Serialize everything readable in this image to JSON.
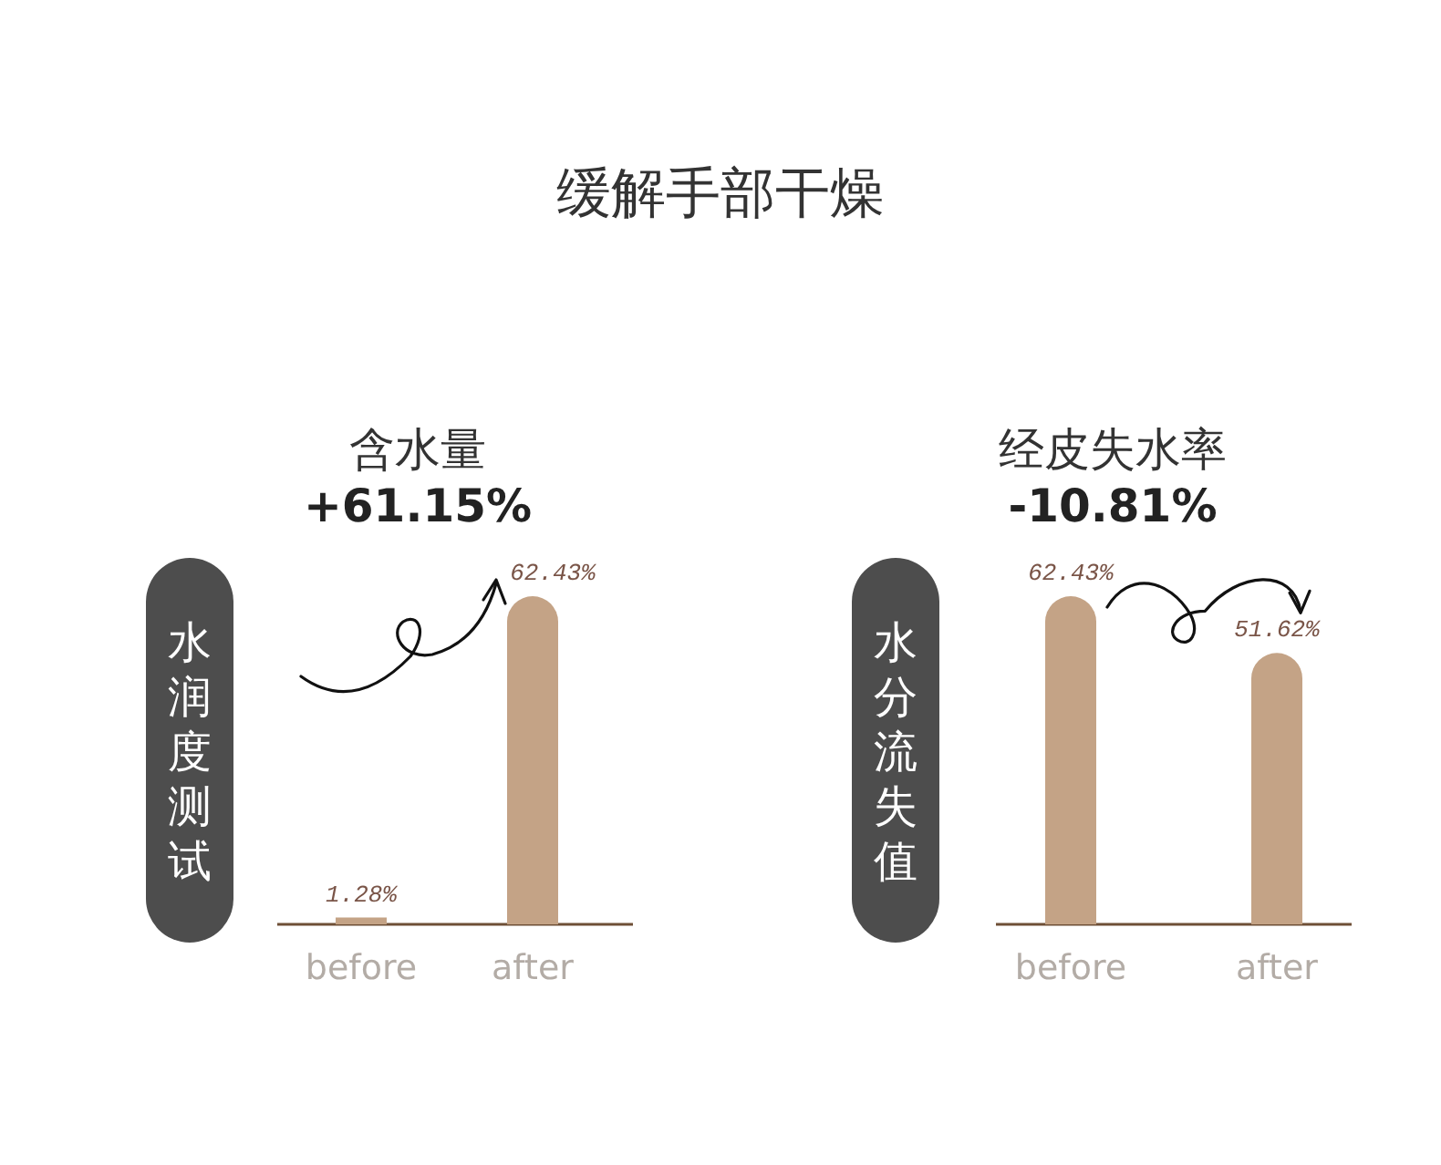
{
  "chart_data": [
    {
      "type": "other",
      "title": "缓解手部干燥"
    },
    {
      "type": "bar",
      "title": "含水量",
      "subtitle": "+61.15%",
      "ylabel": "水润度测试",
      "categories": [
        "before",
        "after"
      ],
      "values": [
        1.28,
        62.43
      ],
      "value_labels": [
        "1.28%",
        "62.43%"
      ],
      "color": "#c4a386"
    },
    {
      "type": "bar",
      "title": "经皮失水率",
      "subtitle": "-10.81%",
      "ylabel": "水分流失值",
      "categories": [
        "before",
        "after"
      ],
      "values": [
        62.43,
        51.62
      ],
      "value_labels": [
        "62.43%",
        "51.62%"
      ],
      "color": "#c4a386"
    }
  ]
}
